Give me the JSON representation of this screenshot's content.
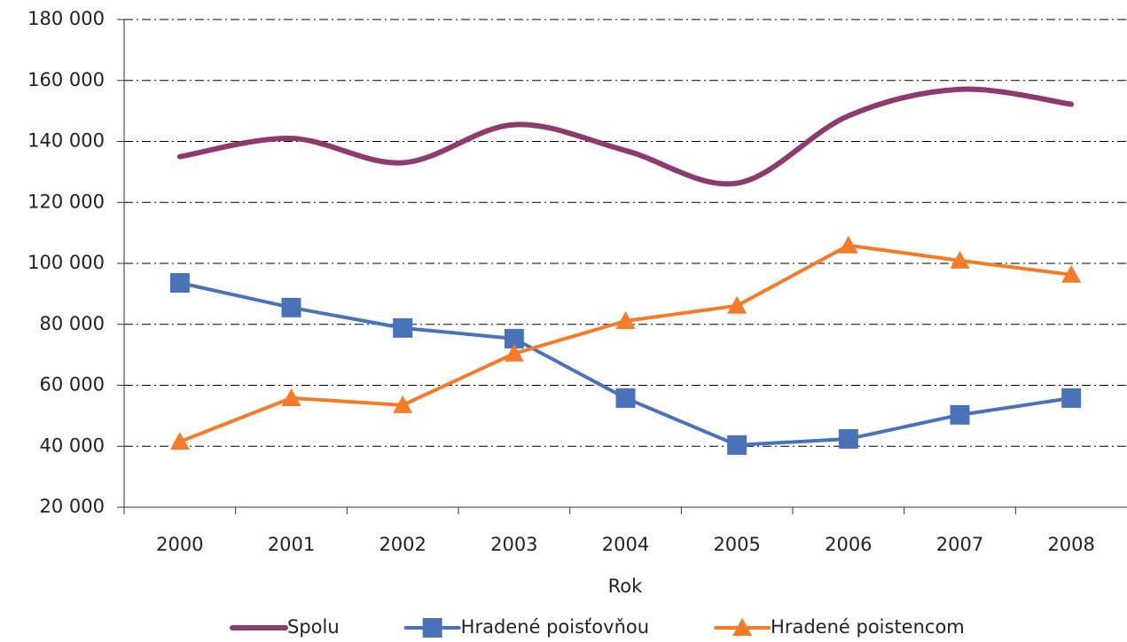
{
  "chart_data": {
    "type": "line",
    "x_label": "Rok",
    "categories": [
      "2000",
      "2001",
      "2002",
      "2003",
      "2004",
      "2005",
      "2006",
      "2007",
      "2008"
    ],
    "series": [
      {
        "name": "Spolu",
        "color": "#8e3a6e",
        "smooth": true,
        "marker": null,
        "values": [
          135000,
          141000,
          133000,
          145500,
          137000,
          126300,
          148400,
          157100,
          152200
        ]
      },
      {
        "name": "Hradené poisťovňou",
        "color": "#4a72b8",
        "smooth": false,
        "marker": "square",
        "values": [
          93600,
          85500,
          78800,
          75300,
          55800,
          40400,
          42400,
          50300,
          55800
        ]
      },
      {
        "name": "Hradené poistencom",
        "color": "#f47b2a",
        "smooth": false,
        "marker": "triangle",
        "values": [
          41500,
          55800,
          53500,
          70400,
          81100,
          86100,
          105900,
          100900,
          96300
        ]
      }
    ],
    "ylim": [
      20000,
      180000
    ],
    "yticks": [
      {
        "value": 20000,
        "label": "20 000"
      },
      {
        "value": 40000,
        "label": "40 000"
      },
      {
        "value": 60000,
        "label": "60 000"
      },
      {
        "value": 80000,
        "label": "80 000"
      },
      {
        "value": 100000,
        "label": "100 000"
      },
      {
        "value": 120000,
        "label": "120 000"
      },
      {
        "value": 140000,
        "label": "140 000"
      },
      {
        "value": 160000,
        "label": "160 000"
      },
      {
        "value": 180000,
        "label": "180 000"
      }
    ],
    "grid": true,
    "legend": "bottom"
  }
}
